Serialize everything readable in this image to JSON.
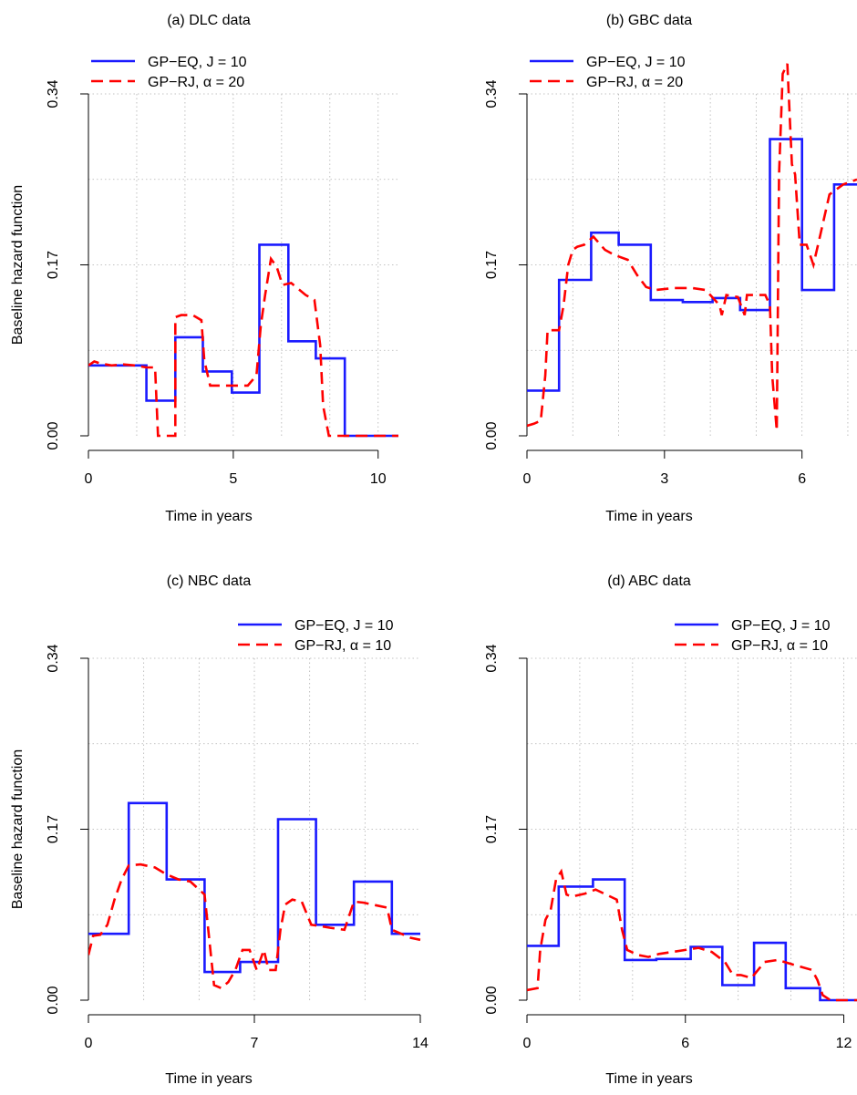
{
  "chart_data": [
    {
      "type": "line",
      "title": "(a) DLC data",
      "xlabel": "Time in years",
      "ylabel": "Baseline hazard function",
      "xlim": [
        0,
        10.7
      ],
      "ylim": [
        0,
        0.34
      ],
      "x_ticks": [
        0,
        5,
        10
      ],
      "y_ticks": [
        0.0,
        0.17,
        0.34
      ],
      "y_tick_labels": [
        "0.00",
        "0.17",
        "0.34"
      ],
      "grid": true,
      "legend_position": "top-left",
      "series": [
        {
          "name": "GP−EQ, J = 10",
          "style": "solid",
          "color": "#1a1aff",
          "x": [
            0,
            2.0,
            2.0,
            3.0,
            3.0,
            3.95,
            3.95,
            4.95,
            4.95,
            5.9,
            5.9,
            6.9,
            6.9,
            7.85,
            7.85,
            8.85,
            8.85,
            10.7
          ],
          "y": [
            0.07,
            0.07,
            0.035,
            0.035,
            0.098,
            0.098,
            0.064,
            0.064,
            0.043,
            0.043,
            0.19,
            0.19,
            0.094,
            0.094,
            0.077,
            0.077,
            0.0,
            0.0
          ]
        },
        {
          "name": "GP−RJ, α = 20",
          "style": "dashed",
          "color": "#ff0000",
          "x": [
            0,
            0.2,
            0.4,
            0.8,
            1.2,
            1.6,
            2.0,
            2.3,
            2.4,
            2.5,
            3.0,
            3.0,
            3.2,
            3.6,
            3.9,
            4.0,
            4.2,
            4.6,
            5.0,
            5.5,
            5.8,
            5.95,
            6.1,
            6.3,
            6.5,
            6.7,
            7.0,
            7.5,
            7.8,
            8.0,
            8.1,
            8.3,
            10.7
          ],
          "y": [
            0.07,
            0.074,
            0.072,
            0.07,
            0.071,
            0.07,
            0.068,
            0.068,
            0.0,
            0.0,
            0.0,
            0.118,
            0.12,
            0.12,
            0.115,
            0.075,
            0.05,
            0.05,
            0.05,
            0.05,
            0.06,
            0.11,
            0.14,
            0.176,
            0.168,
            0.15,
            0.152,
            0.14,
            0.135,
            0.09,
            0.03,
            0.0,
            0.0
          ]
        }
      ]
    },
    {
      "type": "line",
      "title": "(b) GBC data",
      "xlabel": "Time in years",
      "ylabel": "",
      "xlim": [
        0,
        7.2
      ],
      "ylim": [
        0,
        0.34
      ],
      "x_ticks": [
        0,
        3,
        6
      ],
      "y_ticks": [
        0.0,
        0.17,
        0.34
      ],
      "y_tick_labels": [
        "0.00",
        "0.17",
        "0.34"
      ],
      "grid": true,
      "legend_position": "top-left",
      "series": [
        {
          "name": "GP−EQ, J = 10",
          "style": "solid",
          "color": "#1a1aff",
          "x": [
            0,
            0.7,
            0.7,
            1.4,
            1.4,
            2.0,
            2.0,
            2.7,
            2.7,
            3.4,
            3.4,
            4.05,
            4.05,
            4.65,
            4.65,
            5.3,
            5.3,
            6.0,
            6.0,
            6.7,
            6.7,
            7.2
          ],
          "y": [
            0.045,
            0.045,
            0.155,
            0.155,
            0.202,
            0.202,
            0.19,
            0.19,
            0.135,
            0.135,
            0.133,
            0.133,
            0.137,
            0.137,
            0.125,
            0.125,
            0.295,
            0.295,
            0.145,
            0.145,
            0.25,
            0.25
          ]
        },
        {
          "name": "GP−RJ, α = 20",
          "style": "dashed",
          "color": "#ff0000",
          "x": [
            0.0,
            0.15,
            0.3,
            0.4,
            0.45,
            0.7,
            0.8,
            0.9,
            1.0,
            1.1,
            1.25,
            1.45,
            1.7,
            1.9,
            2.2,
            2.4,
            2.6,
            2.8,
            3.2,
            3.6,
            3.9,
            4.2,
            4.25,
            4.35,
            4.6,
            4.75,
            4.8,
            4.95,
            5.2,
            5.3,
            5.35,
            5.45,
            5.5,
            5.58,
            5.68,
            5.78,
            5.85,
            5.95,
            6.1,
            6.25,
            6.4,
            6.6,
            6.9,
            7.2
          ],
          "y": [
            0.01,
            0.012,
            0.015,
            0.06,
            0.105,
            0.105,
            0.13,
            0.17,
            0.185,
            0.188,
            0.19,
            0.198,
            0.185,
            0.18,
            0.175,
            0.16,
            0.148,
            0.145,
            0.147,
            0.147,
            0.145,
            0.13,
            0.12,
            0.14,
            0.138,
            0.12,
            0.14,
            0.14,
            0.14,
            0.13,
            0.06,
            0.005,
            0.26,
            0.36,
            0.37,
            0.27,
            0.26,
            0.19,
            0.19,
            0.17,
            0.2,
            0.24,
            0.25,
            0.255
          ]
        }
      ]
    },
    {
      "type": "line",
      "title": "(c) NBC data",
      "xlabel": "Time in years",
      "ylabel": "Baseline hazard function",
      "xlim": [
        0,
        14
      ],
      "ylim": [
        0,
        0.34
      ],
      "x_ticks": [
        0,
        7,
        14
      ],
      "y_ticks": [
        0.0,
        0.17,
        0.34
      ],
      "y_tick_labels": [
        "0.00",
        "0.17",
        "0.34"
      ],
      "grid": true,
      "legend_position": "top-right",
      "series": [
        {
          "name": "GP−EQ, J = 10",
          "style": "solid",
          "color": "#1a1aff",
          "x": [
            0,
            1.7,
            1.7,
            3.3,
            3.3,
            4.9,
            4.9,
            6.4,
            6.4,
            8.0,
            8.0,
            9.6,
            9.6,
            11.2,
            11.2,
            12.8,
            12.8,
            14
          ],
          "y": [
            0.066,
            0.066,
            0.196,
            0.196,
            0.12,
            0.12,
            0.028,
            0.028,
            0.038,
            0.038,
            0.18,
            0.18,
            0.075,
            0.075,
            0.118,
            0.118,
            0.066,
            0.066
          ]
        },
        {
          "name": "GP−RJ, α = 10",
          "style": "dashed",
          "color": "#ff0000",
          "x": [
            0.0,
            0.2,
            0.5,
            0.8,
            1.1,
            1.4,
            1.7,
            2.2,
            2.8,
            3.3,
            3.8,
            4.3,
            4.9,
            5.1,
            5.3,
            5.6,
            5.9,
            6.2,
            6.5,
            6.8,
            7.1,
            7.4,
            7.6,
            7.9,
            8.1,
            8.3,
            8.6,
            9.0,
            9.4,
            9.7,
            10.2,
            10.8,
            11.2,
            11.6,
            12.2,
            12.6,
            12.8,
            13.2,
            13.6,
            14.0
          ],
          "y": [
            0.045,
            0.064,
            0.065,
            0.075,
            0.1,
            0.12,
            0.134,
            0.135,
            0.132,
            0.125,
            0.12,
            0.118,
            0.105,
            0.06,
            0.015,
            0.012,
            0.018,
            0.03,
            0.05,
            0.05,
            0.03,
            0.05,
            0.03,
            0.03,
            0.07,
            0.095,
            0.1,
            0.098,
            0.075,
            0.074,
            0.072,
            0.07,
            0.098,
            0.097,
            0.094,
            0.092,
            0.07,
            0.066,
            0.062,
            0.06
          ]
        }
      ]
    },
    {
      "type": "line",
      "title": "(d) ABC data",
      "xlabel": "Time in years",
      "ylabel": "",
      "xlim": [
        0,
        12.5
      ],
      "ylim": [
        0,
        0.34
      ],
      "x_ticks": [
        0,
        6,
        12
      ],
      "y_ticks": [
        0.0,
        0.17,
        0.34
      ],
      "y_tick_labels": [
        "0.00",
        "0.17",
        "0.34"
      ],
      "grid": true,
      "legend_position": "top-right",
      "series": [
        {
          "name": "GP−EQ, J = 10",
          "style": "solid",
          "color": "#1a1aff",
          "x": [
            0,
            1.2,
            1.2,
            2.5,
            2.5,
            3.7,
            3.7,
            4.9,
            4.9,
            6.2,
            6.2,
            7.4,
            7.4,
            8.6,
            8.6,
            9.8,
            9.8,
            11.1,
            11.1,
            12.5
          ],
          "y": [
            0.054,
            0.054,
            0.113,
            0.113,
            0.12,
            0.12,
            0.04,
            0.04,
            0.041,
            0.041,
            0.053,
            0.053,
            0.015,
            0.015,
            0.057,
            0.057,
            0.012,
            0.012,
            0.0,
            0.0
          ]
        },
        {
          "name": "GP−RJ, α = 10",
          "style": "dashed",
          "color": "#ff0000",
          "x": [
            0.0,
            0.4,
            0.5,
            0.7,
            0.9,
            1.1,
            1.3,
            1.5,
            1.7,
            2.2,
            2.6,
            3.0,
            3.4,
            3.6,
            3.8,
            4.2,
            4.6,
            5.0,
            5.5,
            6.0,
            6.5,
            7.0,
            7.5,
            7.8,
            8.1,
            8.5,
            9.0,
            9.5,
            10.0,
            10.4,
            10.8,
            11.0,
            11.2,
            11.5,
            11.8,
            12.5
          ],
          "y": [
            0.01,
            0.012,
            0.05,
            0.08,
            0.09,
            0.12,
            0.128,
            0.105,
            0.103,
            0.106,
            0.11,
            0.105,
            0.1,
            0.07,
            0.05,
            0.045,
            0.043,
            0.046,
            0.048,
            0.05,
            0.052,
            0.048,
            0.038,
            0.025,
            0.025,
            0.022,
            0.038,
            0.04,
            0.036,
            0.033,
            0.03,
            0.02,
            0.005,
            0.0,
            0.0,
            0.0
          ]
        }
      ]
    }
  ]
}
